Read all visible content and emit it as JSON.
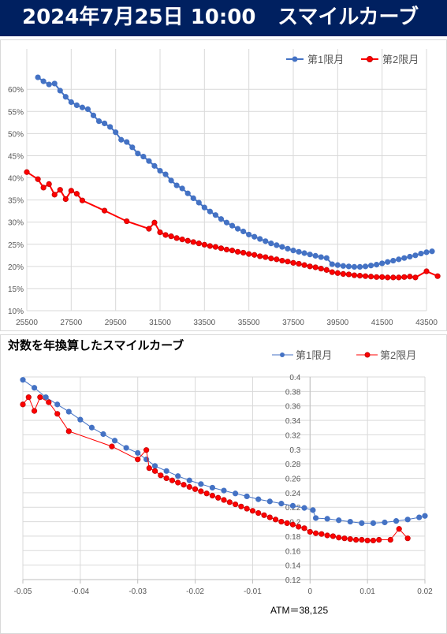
{
  "header": {
    "date_time": "2024年7月25日 10:00",
    "title": "スマイルカーブ",
    "background": "#002060"
  },
  "chart_data": [
    {
      "type": "line",
      "title": "",
      "xlabel": "",
      "ylabel": "",
      "x_ticks": [
        "25500",
        "27500",
        "29500",
        "31500",
        "33500",
        "35500",
        "37500",
        "39500",
        "41500",
        "43500"
      ],
      "y_ticks": [
        "10%",
        "15%",
        "20%",
        "25%",
        "30%",
        "35%",
        "40%",
        "45%",
        "50%",
        "55%",
        "60%"
      ],
      "xlim": [
        25500,
        43500
      ],
      "ylim": [
        10,
        62
      ],
      "grid": true,
      "legend": "top-right",
      "series": [
        {
          "name": "第1限月",
          "color": "#4472C4",
          "points": [
            [
              26000,
              62.7
            ],
            [
              26250,
              61.8
            ],
            [
              26500,
              61.1
            ],
            [
              26750,
              61.3
            ],
            [
              27000,
              59.7
            ],
            [
              27250,
              58.3
            ],
            [
              27500,
              57.1
            ],
            [
              27750,
              56.4
            ],
            [
              28000,
              55.9
            ],
            [
              28250,
              55.5
            ],
            [
              28500,
              54.1
            ],
            [
              28750,
              52.8
            ],
            [
              29000,
              52.3
            ],
            [
              29250,
              51.5
            ],
            [
              29500,
              50.3
            ],
            [
              29750,
              48.6
            ],
            [
              30000,
              48.1
            ],
            [
              30250,
              46.9
            ],
            [
              30500,
              45.5
            ],
            [
              30750,
              44.8
            ],
            [
              31000,
              43.8
            ],
            [
              31250,
              42.7
            ],
            [
              31500,
              41.6
            ],
            [
              31750,
              40.8
            ],
            [
              32000,
              39.4
            ],
            [
              32250,
              38.3
            ],
            [
              32500,
              37.6
            ],
            [
              32750,
              36.5
            ],
            [
              33000,
              35.4
            ],
            [
              33250,
              34.4
            ],
            [
              33500,
              33.3
            ],
            [
              33750,
              32.4
            ],
            [
              34000,
              31.6
            ],
            [
              34250,
              30.7
            ],
            [
              34500,
              29.9
            ],
            [
              34750,
              29.2
            ],
            [
              35000,
              28.5
            ],
            [
              35250,
              27.9
            ],
            [
              35500,
              27.2
            ],
            [
              35750,
              26.7
            ],
            [
              36000,
              26.2
            ],
            [
              36250,
              25.7
            ],
            [
              36500,
              25.2
            ],
            [
              36750,
              24.8
            ],
            [
              37000,
              24.4
            ],
            [
              37250,
              24.0
            ],
            [
              37500,
              23.6
            ],
            [
              37750,
              23.3
            ],
            [
              38000,
              23.0
            ],
            [
              38250,
              22.7
            ],
            [
              38500,
              22.4
            ],
            [
              38750,
              22.1
            ],
            [
              39000,
              21.9
            ],
            [
              39250,
              20.5
            ],
            [
              39500,
              20.3
            ],
            [
              39750,
              20.1
            ],
            [
              40000,
              20.0
            ],
            [
              40250,
              19.9
            ],
            [
              40500,
              19.9
            ],
            [
              40750,
              20.0
            ],
            [
              41000,
              20.2
            ],
            [
              41250,
              20.4
            ],
            [
              41500,
              20.7
            ],
            [
              41750,
              21.0
            ],
            [
              42000,
              21.3
            ],
            [
              42250,
              21.6
            ],
            [
              42500,
              21.9
            ],
            [
              42750,
              22.2
            ],
            [
              43000,
              22.5
            ],
            [
              43250,
              22.9
            ],
            [
              43500,
              23.2
            ],
            [
              43750,
              23.4
            ]
          ]
        },
        {
          "name": "第2限月",
          "color": "#FF0000",
          "points": [
            [
              25500,
              41.3
            ],
            [
              26000,
              39.7
            ],
            [
              26250,
              37.8
            ],
            [
              26500,
              38.6
            ],
            [
              26750,
              36.2
            ],
            [
              27000,
              37.3
            ],
            [
              27250,
              35.2
            ],
            [
              27500,
              37.1
            ],
            [
              27750,
              36.4
            ],
            [
              28000,
              34.9
            ],
            [
              29000,
              32.6
            ],
            [
              30000,
              30.2
            ],
            [
              31000,
              28.5
            ],
            [
              31250,
              29.9
            ],
            [
              31500,
              27.7
            ],
            [
              31750,
              27.1
            ],
            [
              32000,
              26.8
            ],
            [
              32250,
              26.4
            ],
            [
              32500,
              26.1
            ],
            [
              32750,
              25.8
            ],
            [
              33000,
              25.5
            ],
            [
              33250,
              25.2
            ],
            [
              33500,
              24.9
            ],
            [
              33750,
              24.6
            ],
            [
              34000,
              24.4
            ],
            [
              34250,
              24.1
            ],
            [
              34500,
              23.8
            ],
            [
              34750,
              23.6
            ],
            [
              35000,
              23.3
            ],
            [
              35250,
              23.1
            ],
            [
              35500,
              22.8
            ],
            [
              35750,
              22.6
            ],
            [
              36000,
              22.3
            ],
            [
              36250,
              22.1
            ],
            [
              36500,
              21.8
            ],
            [
              36750,
              21.6
            ],
            [
              37000,
              21.3
            ],
            [
              37250,
              21.1
            ],
            [
              37500,
              20.8
            ],
            [
              37750,
              20.6
            ],
            [
              38000,
              20.3
            ],
            [
              38250,
              20.0
            ],
            [
              38500,
              19.8
            ],
            [
              38750,
              19.5
            ],
            [
              39000,
              19.2
            ],
            [
              39250,
              18.7
            ],
            [
              39500,
              18.5
            ],
            [
              39750,
              18.3
            ],
            [
              40000,
              18.2
            ],
            [
              40250,
              18.0
            ],
            [
              40500,
              17.9
            ],
            [
              40750,
              17.8
            ],
            [
              41000,
              17.7
            ],
            [
              41250,
              17.6
            ],
            [
              41500,
              17.6
            ],
            [
              41750,
              17.5
            ],
            [
              42000,
              17.5
            ],
            [
              42250,
              17.5
            ],
            [
              42500,
              17.6
            ],
            [
              42750,
              17.7
            ],
            [
              43000,
              17.5
            ],
            [
              43500,
              18.9
            ],
            [
              44000,
              17.8
            ]
          ]
        }
      ]
    },
    {
      "type": "line",
      "title": "対数を年換算したスマイルカーブ",
      "xlabel": "",
      "ylabel": "",
      "x_ticks": [
        "-0.05",
        "-0.04",
        "-0.03",
        "-0.02",
        "-0.01",
        "0",
        "0.01",
        "0.02"
      ],
      "y_ticks": [
        "0.12",
        "0.14",
        "0.16",
        "0.18",
        "0.2",
        "0.22",
        "0.24",
        "0.26",
        "0.28",
        "0.3",
        "0.32",
        "0.34",
        "0.36",
        "0.38",
        "0.4"
      ],
      "xlim": [
        -0.05,
        0.02
      ],
      "ylim": [
        0.12,
        0.4
      ],
      "grid": true,
      "legend": "top-right",
      "annotation": "ATM＝38,125",
      "series": [
        {
          "name": "第1限月",
          "color": "#4472C4",
          "points": [
            [
              -0.05,
              0.396
            ],
            [
              -0.048,
              0.385
            ],
            [
              -0.046,
              0.372
            ],
            [
              -0.044,
              0.362
            ],
            [
              -0.042,
              0.352
            ],
            [
              -0.04,
              0.341
            ],
            [
              -0.038,
              0.33
            ],
            [
              -0.036,
              0.321
            ],
            [
              -0.034,
              0.312
            ],
            [
              -0.032,
              0.302
            ],
            [
              -0.03,
              0.295
            ],
            [
              -0.0285,
              0.286
            ],
            [
              -0.027,
              0.277
            ],
            [
              -0.025,
              0.27
            ],
            [
              -0.023,
              0.263
            ],
            [
              -0.021,
              0.257
            ],
            [
              -0.019,
              0.252
            ],
            [
              -0.017,
              0.247
            ],
            [
              -0.015,
              0.243
            ],
            [
              -0.013,
              0.239
            ],
            [
              -0.011,
              0.235
            ],
            [
              -0.009,
              0.231
            ],
            [
              -0.007,
              0.228
            ],
            [
              -0.005,
              0.225
            ],
            [
              -0.003,
              0.222
            ],
            [
              -0.001,
              0.219
            ],
            [
              0.0005,
              0.216
            ],
            [
              0.001,
              0.205
            ],
            [
              0.003,
              0.204
            ],
            [
              0.005,
              0.202
            ],
            [
              0.007,
              0.2
            ],
            [
              0.009,
              0.198
            ],
            [
              0.011,
              0.198
            ],
            [
              0.013,
              0.199
            ],
            [
              0.015,
              0.201
            ],
            [
              0.017,
              0.203
            ],
            [
              0.019,
              0.206
            ],
            [
              0.02,
              0.208
            ]
          ]
        },
        {
          "name": "第2限月",
          "color": "#FF0000",
          "points": [
            [
              -0.05,
              0.362
            ],
            [
              -0.049,
              0.372
            ],
            [
              -0.048,
              0.353
            ],
            [
              -0.047,
              0.372
            ],
            [
              -0.0455,
              0.365
            ],
            [
              -0.044,
              0.349
            ],
            [
              -0.042,
              0.325
            ],
            [
              -0.0345,
              0.304
            ],
            [
              -0.03,
              0.286
            ],
            [
              -0.0285,
              0.299
            ],
            [
              -0.028,
              0.274
            ],
            [
              -0.027,
              0.27
            ],
            [
              -0.026,
              0.264
            ],
            [
              -0.025,
              0.26
            ],
            [
              -0.024,
              0.257
            ],
            [
              -0.023,
              0.254
            ],
            [
              -0.022,
              0.251
            ],
            [
              -0.021,
              0.248
            ],
            [
              -0.02,
              0.245
            ],
            [
              -0.019,
              0.242
            ],
            [
              -0.018,
              0.239
            ],
            [
              -0.017,
              0.236
            ],
            [
              -0.016,
              0.233
            ],
            [
              -0.015,
              0.23
            ],
            [
              -0.014,
              0.227
            ],
            [
              -0.013,
              0.224
            ],
            [
              -0.012,
              0.221
            ],
            [
              -0.011,
              0.218
            ],
            [
              -0.01,
              0.215
            ],
            [
              -0.009,
              0.212
            ],
            [
              -0.008,
              0.209
            ],
            [
              -0.007,
              0.206
            ],
            [
              -0.006,
              0.203
            ],
            [
              -0.005,
              0.2
            ],
            [
              -0.004,
              0.198
            ],
            [
              -0.003,
              0.196
            ],
            [
              -0.002,
              0.193
            ],
            [
              -0.001,
              0.191
            ],
            [
              0.0,
              0.186
            ],
            [
              0.001,
              0.184
            ],
            [
              0.002,
              0.183
            ],
            [
              0.003,
              0.181
            ],
            [
              0.004,
              0.18
            ],
            [
              0.005,
              0.178
            ],
            [
              0.006,
              0.177
            ],
            [
              0.007,
              0.176
            ],
            [
              0.008,
              0.175
            ],
            [
              0.009,
              0.175
            ],
            [
              0.01,
              0.174
            ],
            [
              0.011,
              0.174
            ],
            [
              0.012,
              0.175
            ],
            [
              0.014,
              0.175
            ],
            [
              0.0155,
              0.19
            ],
            [
              0.017,
              0.177
            ]
          ]
        }
      ]
    }
  ]
}
